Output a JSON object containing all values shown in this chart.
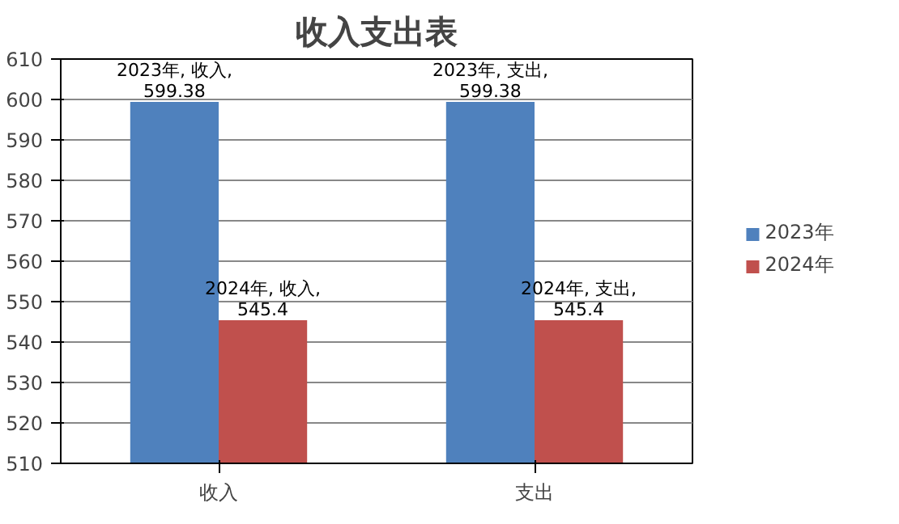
{
  "chart_data": {
    "type": "bar",
    "title": "收入支出表",
    "categories": [
      "收入",
      "支出"
    ],
    "series": [
      {
        "name": "2023年",
        "color": "#4f81bd",
        "values": [
          599.38,
          599.38
        ],
        "value_labels": [
          "2023年, 收入, 599.38",
          "2023年, 支出, 599.38"
        ]
      },
      {
        "name": "2024年",
        "color": "#c0504d",
        "values": [
          545.4,
          545.4
        ],
        "value_labels": [
          "2024年, 收入, 545.4",
          "2024年, 支出, 545.4"
        ]
      }
    ],
    "ylim": [
      510,
      610
    ],
    "yticks": [
      510,
      520,
      530,
      540,
      550,
      560,
      570,
      580,
      590,
      600,
      610
    ],
    "grid": "y",
    "legend": "right"
  }
}
